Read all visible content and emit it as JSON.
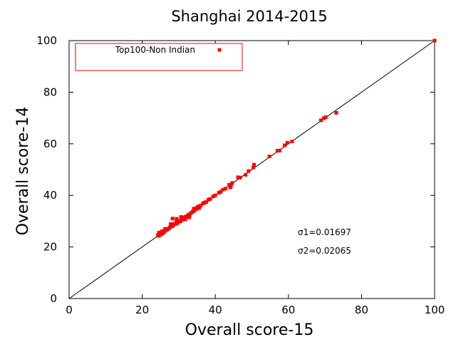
{
  "chart_data": {
    "type": "scatter",
    "title": "Shanghai 2014-2015",
    "xlabel": "Overall score-15",
    "ylabel": "Overall score-14",
    "xlim": [
      0,
      100
    ],
    "ylim": [
      0,
      100
    ],
    "xticks": [
      0,
      20,
      40,
      60,
      80,
      100
    ],
    "yticks": [
      0,
      20,
      40,
      60,
      80,
      100
    ],
    "grid": false,
    "legend_position": "top-left",
    "colors": {
      "marker": "#ff0000",
      "reference_line": "#000000",
      "legend_border": "#ff0000"
    },
    "reference_line": {
      "label": "y = x",
      "from": [
        0,
        0
      ],
      "to": [
        100,
        100
      ]
    },
    "series": [
      {
        "name": "Top100-Non Indian",
        "marker": "square",
        "x": [
          100,
          73.1,
          70.2,
          69.7,
          68.9,
          61.0,
          59.7,
          59.0,
          57.6,
          57.0,
          54.8,
          50.6,
          50.4,
          49.1,
          48.3,
          46.8,
          46.2,
          44.6,
          44.3,
          44.1,
          43.8,
          42.8,
          42.1,
          41.5,
          41.0,
          40.0,
          39.4,
          38.6,
          38.1,
          37.5,
          37.0,
          36.6,
          36.0,
          35.6,
          35.2,
          34.9,
          34.6,
          34.2,
          33.8,
          33.4,
          33.0,
          32.7,
          32.4,
          32.0,
          31.7,
          31.4,
          31.1,
          30.8,
          30.5,
          30.2,
          29.9,
          29.6,
          29.3,
          29.0,
          28.7,
          28.4,
          28.1,
          27.9,
          27.6,
          27.3,
          27.0,
          26.7,
          26.4,
          26.1,
          25.8,
          25.5,
          25.2,
          24.9,
          24.6,
          24.3,
          24.6,
          25.4,
          26.2,
          27.8,
          28.3,
          29.4,
          30.6,
          31.8,
          32.9,
          34.1,
          35.3
        ],
        "y": [
          100,
          72.0,
          70.3,
          69.9,
          69.1,
          60.9,
          60.4,
          59.4,
          57.4,
          57.3,
          55.1,
          51.9,
          50.8,
          49.4,
          48.0,
          46.9,
          47.0,
          44.8,
          43.7,
          43.1,
          44.1,
          42.6,
          42.2,
          41.4,
          41.0,
          40.0,
          39.6,
          38.6,
          38.3,
          37.4,
          37.2,
          36.8,
          36.0,
          35.1,
          35.3,
          34.7,
          35.0,
          34.0,
          33.7,
          33.2,
          32.5,
          32.6,
          32.0,
          31.8,
          31.2,
          31.5,
          30.6,
          30.9,
          29.9,
          30.1,
          29.7,
          29.2,
          29.5,
          28.8,
          28.9,
          28.1,
          28.4,
          28.0,
          27.6,
          27.2,
          26.9,
          26.6,
          26.5,
          26.0,
          25.6,
          25.3,
          24.9,
          25.0,
          24.3,
          24.6,
          25.6,
          26.1,
          27.0,
          28.9,
          31.0,
          30.9,
          31.6,
          30.7,
          31.5,
          34.8,
          35.7
        ]
      }
    ],
    "annotations": [
      "σ1=0.01697",
      "σ2=0.02065"
    ]
  }
}
